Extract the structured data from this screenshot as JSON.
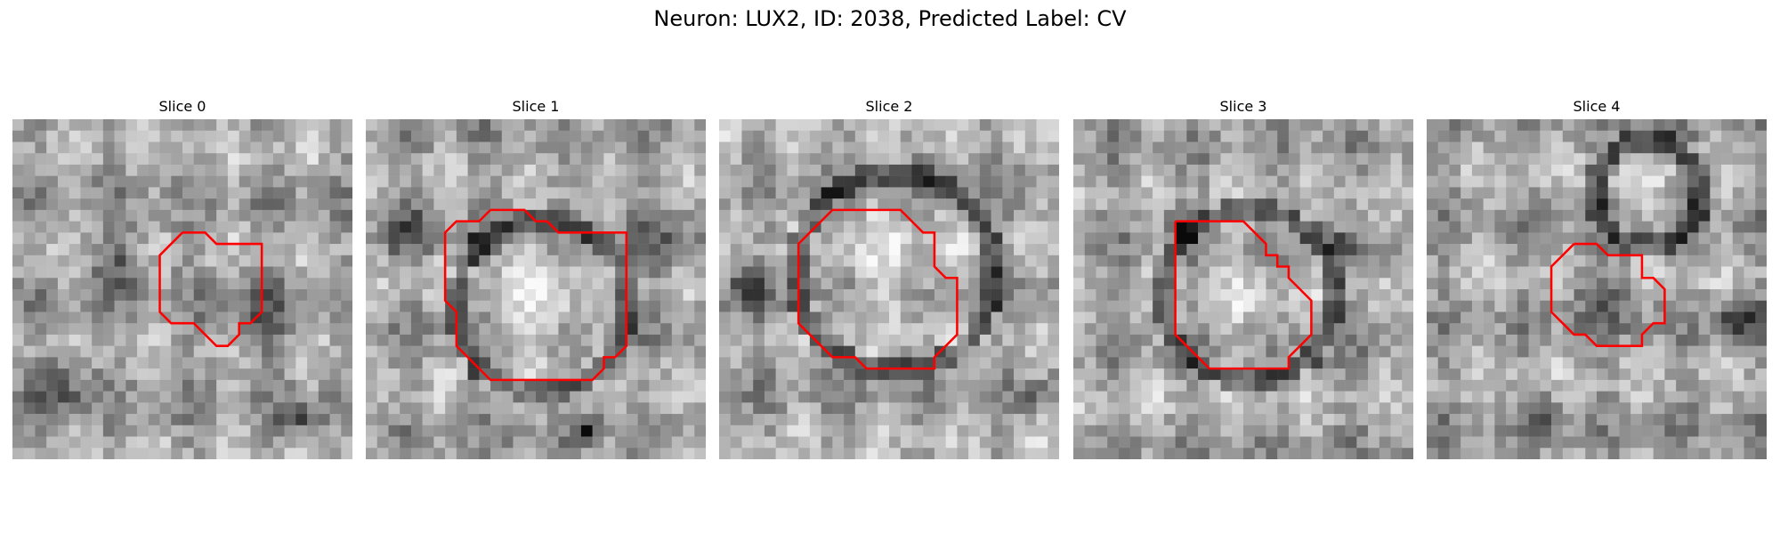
{
  "figure": {
    "title": "Neuron: LUX2, ID: 2038, Predicted Label: CV",
    "contour_color": "#ff0000"
  },
  "panels": [
    {
      "title": "Slice 0",
      "image": "grayscale-em-slice-0",
      "seed": 11,
      "blobs": [
        [
          9,
          12,
          4,
          70
        ],
        [
          21,
          17,
          6,
          60
        ],
        [
          4,
          23,
          4,
          80
        ],
        [
          25,
          26,
          3,
          90
        ]
      ],
      "contour": [
        [
          15,
          10
        ],
        [
          17,
          10
        ],
        [
          18,
          11
        ],
        [
          22,
          11
        ],
        [
          22,
          17
        ],
        [
          21,
          18
        ],
        [
          20,
          18
        ],
        [
          20,
          19
        ],
        [
          19,
          20
        ],
        [
          18,
          20
        ],
        [
          17,
          19
        ],
        [
          16,
          18
        ],
        [
          14,
          18
        ],
        [
          13,
          17
        ],
        [
          13,
          12
        ],
        [
          14,
          11
        ],
        [
          15,
          10
        ]
      ]
    },
    {
      "title": "Slice 1",
      "image": "grayscale-em-slice-1",
      "seed": 23,
      "blobs": [
        [
          15,
          16,
          7,
          -60
        ],
        [
          19,
          27,
          2,
          110
        ],
        [
          3,
          9,
          4,
          60
        ],
        [
          26,
          10,
          5,
          50
        ]
      ],
      "contour": [
        [
          11,
          8
        ],
        [
          14,
          8
        ],
        [
          15,
          9
        ],
        [
          16,
          9
        ],
        [
          17,
          10
        ],
        [
          23,
          10
        ],
        [
          23,
          20
        ],
        [
          22,
          21
        ],
        [
          21,
          21
        ],
        [
          21,
          22
        ],
        [
          20,
          23
        ],
        [
          11,
          23
        ],
        [
          10,
          22
        ],
        [
          9,
          21
        ],
        [
          8,
          20
        ],
        [
          8,
          17
        ],
        [
          7,
          16
        ],
        [
          7,
          10
        ],
        [
          8,
          9
        ],
        [
          10,
          9
        ],
        [
          11,
          8
        ]
      ]
    },
    {
      "title": "Slice 2",
      "image": "grayscale-em-slice-2",
      "seed": 37,
      "blobs": [
        [
          15,
          13,
          8,
          -50
        ],
        [
          27,
          24,
          2,
          100
        ],
        [
          2,
          15,
          3,
          90
        ]
      ],
      "contour": [
        [
          10,
          8
        ],
        [
          16,
          8
        ],
        [
          17,
          9
        ],
        [
          18,
          10
        ],
        [
          19,
          10
        ],
        [
          19,
          13
        ],
        [
          20,
          14
        ],
        [
          21,
          14
        ],
        [
          21,
          19
        ],
        [
          20,
          20
        ],
        [
          19,
          21
        ],
        [
          19,
          22
        ],
        [
          13,
          22
        ],
        [
          12,
          21
        ],
        [
          10,
          21
        ],
        [
          9,
          20
        ],
        [
          8,
          19
        ],
        [
          7,
          18
        ],
        [
          7,
          11
        ],
        [
          8,
          10
        ],
        [
          9,
          9
        ],
        [
          10,
          8
        ]
      ]
    },
    {
      "title": "Slice 3",
      "image": "grayscale-em-slice-3",
      "seed": 51,
      "blobs": [
        [
          15,
          15,
          7,
          -30
        ],
        [
          23,
          11,
          2,
          90
        ],
        [
          9,
          9,
          3,
          40
        ]
      ],
      "contour": [
        [
          9,
          9
        ],
        [
          15,
          9
        ],
        [
          16,
          10
        ],
        [
          17,
          11
        ],
        [
          17,
          12
        ],
        [
          18,
          12
        ],
        [
          18,
          13
        ],
        [
          19,
          13
        ],
        [
          19,
          14
        ],
        [
          20,
          15
        ],
        [
          21,
          16
        ],
        [
          21,
          19
        ],
        [
          20,
          20
        ],
        [
          19,
          21
        ],
        [
          19,
          22
        ],
        [
          12,
          22
        ],
        [
          11,
          21
        ],
        [
          10,
          20
        ],
        [
          9,
          19
        ],
        [
          9,
          9
        ]
      ]
    },
    {
      "title": "Slice 4",
      "image": "grayscale-em-slice-4",
      "seed": 67,
      "blobs": [
        [
          15,
          15,
          5,
          60
        ],
        [
          27,
          17,
          3,
          110
        ],
        [
          10,
          26,
          3,
          60
        ],
        [
          19,
          6,
          4,
          -40
        ]
      ],
      "contour": [
        [
          13,
          11
        ],
        [
          15,
          11
        ],
        [
          16,
          12
        ],
        [
          19,
          12
        ],
        [
          19,
          14
        ],
        [
          20,
          14
        ],
        [
          21,
          15
        ],
        [
          21,
          18
        ],
        [
          20,
          18
        ],
        [
          19,
          19
        ],
        [
          19,
          20
        ],
        [
          15,
          20
        ],
        [
          14,
          19
        ],
        [
          13,
          19
        ],
        [
          12,
          18
        ],
        [
          11,
          17
        ],
        [
          11,
          13
        ],
        [
          12,
          12
        ],
        [
          13,
          11
        ]
      ]
    }
  ]
}
